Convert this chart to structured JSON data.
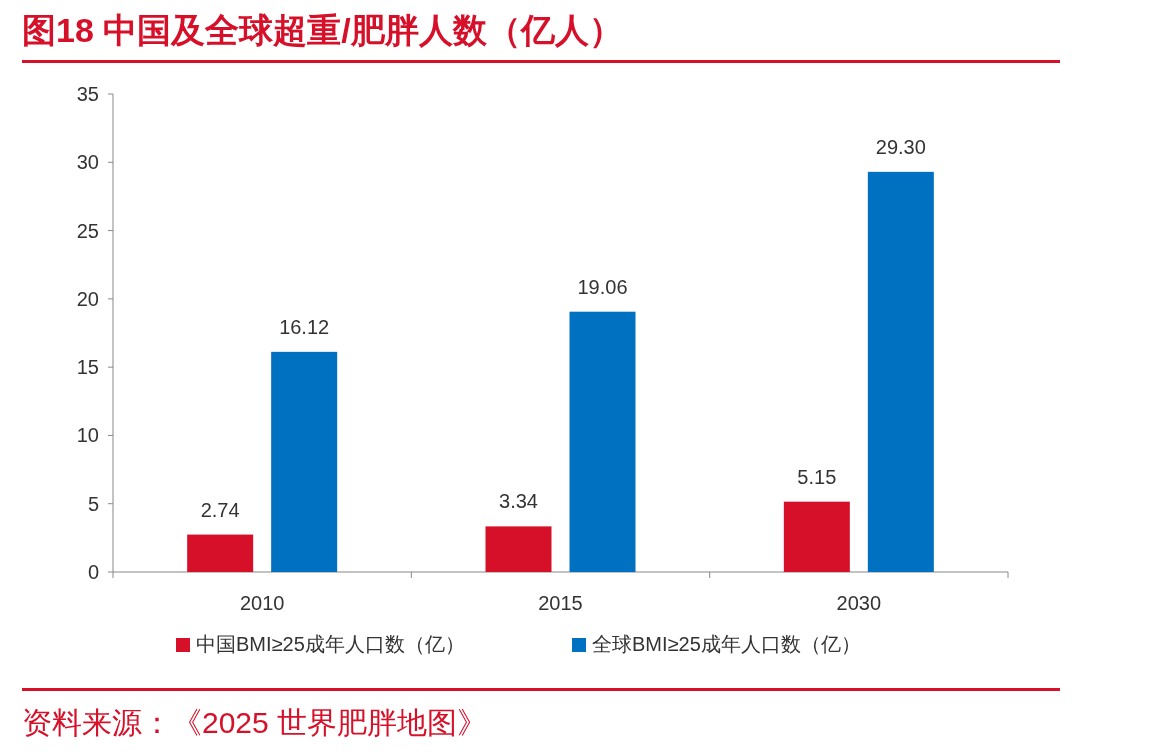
{
  "chart_data": {
    "type": "bar",
    "title": "图18  中国及全球超重/肥胖人数（亿人）",
    "categories": [
      "2010",
      "2015",
      "2030"
    ],
    "series": [
      {
        "name": "中国BMI≥25成年人口数（亿）",
        "color": "#d7102a",
        "values": [
          2.74,
          3.34,
          5.15
        ]
      },
      {
        "name": "全球BMI≥25成年人口数（亿）",
        "color": "#0070c0",
        "values": [
          16.12,
          19.06,
          29.3
        ]
      }
    ],
    "value_labels": [
      [
        "2.74",
        "3.34",
        "5.15"
      ],
      [
        "16.12",
        "19.06",
        "29.30"
      ]
    ],
    "ylim": [
      0,
      35
    ],
    "yticks": [
      0,
      5,
      10,
      15,
      20,
      25,
      30,
      35
    ],
    "grid": false,
    "legend": "bottom",
    "annotations": [
      "资料来源：《2025 世界肥胖地图》"
    ]
  }
}
